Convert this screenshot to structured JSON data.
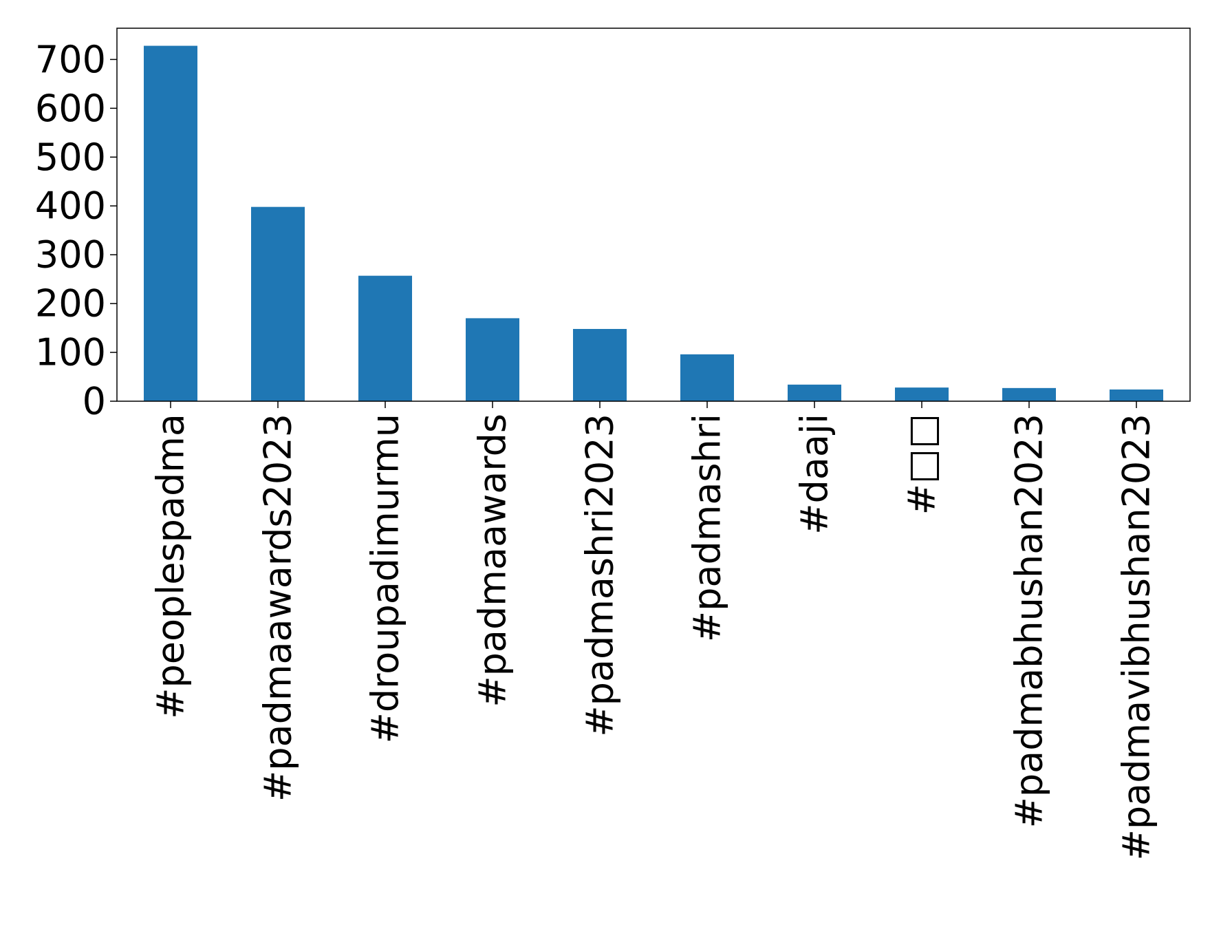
{
  "chart_data": {
    "type": "bar",
    "title": "",
    "xlabel": "",
    "ylabel": "",
    "categories": [
      "#peoplespadma",
      "#padmaawards2023",
      "#droupadimurmu",
      "#padmaawards",
      "#padmashri2023",
      "#padmashri",
      "#daaji",
      "#□□",
      "#padmabhushan2023",
      "#padmavibhushan2023"
    ],
    "values": [
      728,
      398,
      257,
      170,
      148,
      96,
      34,
      28,
      27,
      24
    ],
    "ylim": [
      0,
      764
    ],
    "yticks": [
      0,
      100,
      200,
      300,
      400,
      500,
      600,
      700
    ],
    "grid": false,
    "legend": "none",
    "colors": {
      "bar": "#1f77b4",
      "axis": "#000000"
    }
  }
}
